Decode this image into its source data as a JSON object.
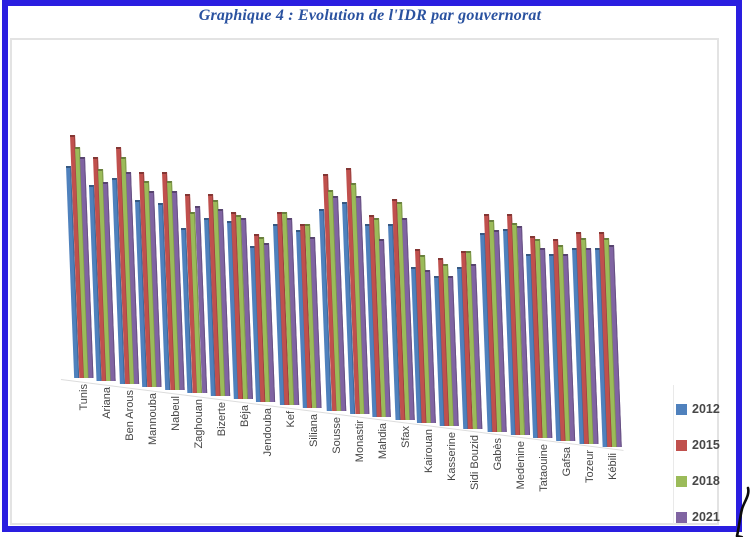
{
  "title": "Graphique 4 : Evolution de l'IDR par gouvernorat",
  "colors": {
    "frame_border": "#2a1ee0",
    "chart_border": "#e3e3e3",
    "title_text": "#2a52a0",
    "label_text": "#454545"
  },
  "legend": {
    "items": [
      {
        "label": "2012",
        "color": "#4F81BD"
      },
      {
        "label": "2015",
        "color": "#C0504D"
      },
      {
        "label": "2018",
        "color": "#9BBB59"
      },
      {
        "label": "2021",
        "color": "#8064A2"
      }
    ]
  },
  "chart_data": {
    "type": "bar",
    "style": "3d-clustered-column",
    "title": "Graphique 4 : Evolution de l'IDR par gouvernorat",
    "categories": [
      "Tunis",
      "Ariana",
      "Ben Arous",
      "Mannouba",
      "Nabeul",
      "Zaghouan",
      "Bizerte",
      "Béja",
      "Jendouba",
      "Kef",
      "Siliana",
      "Sousse",
      "Monastir",
      "Mahdia",
      "Sfax",
      "Kairouan",
      "Kasserine",
      "Sidi Bouzid",
      "Gabès",
      "Medenine",
      "Tataouine",
      "Gafsa",
      "Tozeur",
      "Kébili"
    ],
    "series": [
      {
        "name": "2012",
        "color": "#4F81BD",
        "values": [
          0.68,
          0.63,
          0.66,
          0.6,
          0.6,
          0.53,
          0.57,
          0.57,
          0.5,
          0.58,
          0.57,
          0.65,
          0.68,
          0.62,
          0.63,
          0.5,
          0.48,
          0.52,
          0.64,
          0.66,
          0.59,
          0.6,
          0.63,
          0.64
        ]
      },
      {
        "name": "2015",
        "color": "#C0504D",
        "values": [
          0.78,
          0.72,
          0.76,
          0.69,
          0.7,
          0.64,
          0.65,
          0.6,
          0.54,
          0.62,
          0.59,
          0.76,
          0.79,
          0.65,
          0.71,
          0.56,
          0.54,
          0.57,
          0.7,
          0.71,
          0.65,
          0.65,
          0.68,
          0.69
        ]
      },
      {
        "name": "2018",
        "color": "#9BBB59",
        "values": [
          0.74,
          0.68,
          0.73,
          0.66,
          0.67,
          0.58,
          0.63,
          0.59,
          0.53,
          0.62,
          0.59,
          0.71,
          0.74,
          0.64,
          0.7,
          0.54,
          0.52,
          0.57,
          0.68,
          0.68,
          0.64,
          0.63,
          0.66,
          0.67
        ]
      },
      {
        "name": "2021",
        "color": "#8064A2",
        "values": [
          0.71,
          0.64,
          0.68,
          0.63,
          0.64,
          0.6,
          0.6,
          0.58,
          0.51,
          0.6,
          0.55,
          0.69,
          0.7,
          0.57,
          0.65,
          0.49,
          0.48,
          0.53,
          0.65,
          0.67,
          0.61,
          0.6,
          0.63,
          0.65
        ]
      }
    ],
    "xlabel": "",
    "ylabel": "",
    "ylim": [
      0,
      0.8
    ],
    "value_axis_visible": false,
    "gridlines": false,
    "legend_position": "right"
  }
}
